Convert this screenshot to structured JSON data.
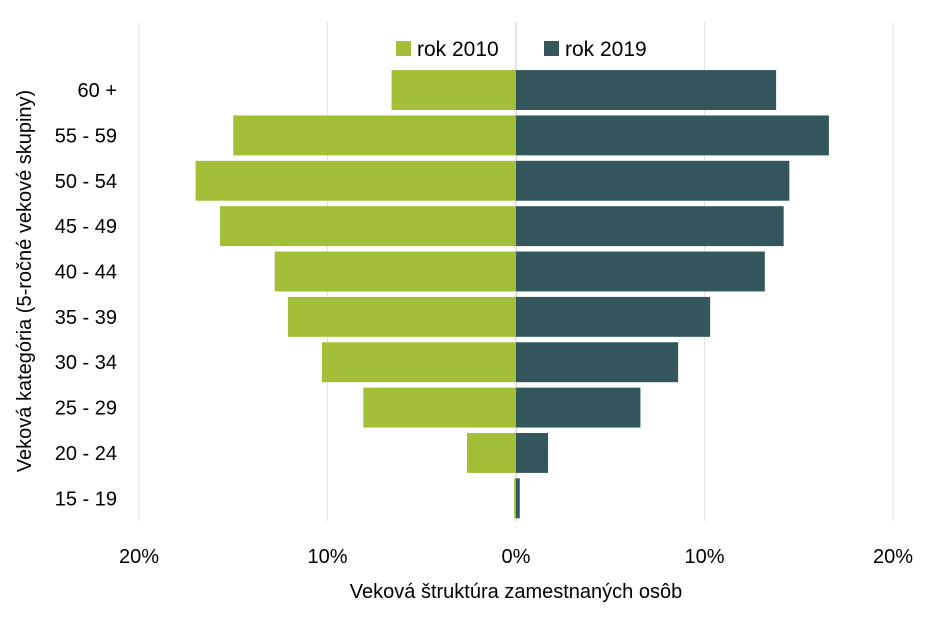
{
  "chart_data": {
    "type": "bar",
    "orientation": "horizontal-butterfly",
    "title": "",
    "xlabel": "Veková štruktúra zamestnaných osôb",
    "ylabel": "Veková kategória (5-ročné vekové skupiny)",
    "categories": [
      "15 - 19",
      "20 - 24",
      "25 - 29",
      "30 - 34",
      "35 - 39",
      "40 - 44",
      "45 - 49",
      "50 - 54",
      "55 - 59",
      "60 +"
    ],
    "series": [
      {
        "name": "rok 2010",
        "side": "left",
        "color": "#a3bf37",
        "values": [
          0.1,
          2.6,
          8.1,
          10.3,
          12.1,
          12.8,
          15.7,
          17.0,
          15.0,
          6.6
        ]
      },
      {
        "name": "rok 2019",
        "side": "right",
        "color": "#33575c",
        "values": [
          0.2,
          1.7,
          6.6,
          8.6,
          10.3,
          13.2,
          14.2,
          14.5,
          16.6,
          13.8
        ]
      }
    ],
    "xlim": [
      -20,
      20
    ],
    "xticks": [
      {
        "value": -20,
        "label": "20%"
      },
      {
        "value": -10,
        "label": "10%"
      },
      {
        "value": 0,
        "label": "0%"
      },
      {
        "value": 10,
        "label": "10%"
      },
      {
        "value": 20,
        "label": "20%"
      }
    ],
    "grid": true,
    "legend_position": "top-center"
  }
}
